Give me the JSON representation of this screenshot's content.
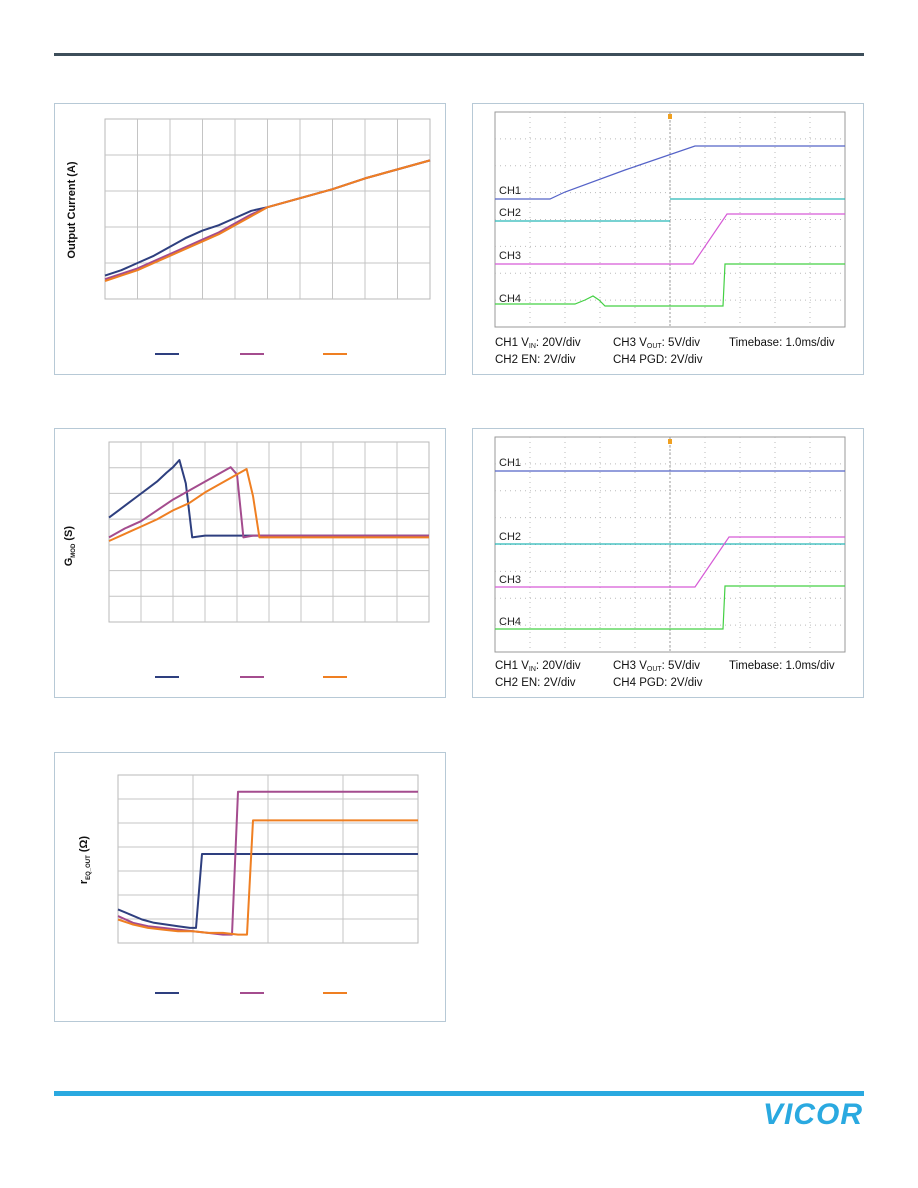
{
  "charts": [
    {
      "type": "line",
      "ylabel": "Output Current (A)",
      "series": [
        {
          "color": "#2e3f7f",
          "x": [
            0,
            0.05,
            0.1,
            0.15,
            0.2,
            0.25,
            0.3,
            0.35,
            0.4,
            0.45,
            0.5,
            0.6,
            0.7,
            0.8,
            0.9,
            1.0
          ],
          "y": [
            0.13,
            0.16,
            0.2,
            0.24,
            0.29,
            0.34,
            0.38,
            0.41,
            0.45,
            0.49,
            0.51,
            0.56,
            0.61,
            0.67,
            0.72,
            0.77
          ]
        },
        {
          "color": "#a44c8e",
          "x": [
            0,
            0.05,
            0.1,
            0.15,
            0.2,
            0.25,
            0.3,
            0.35,
            0.4,
            0.45,
            0.5,
            0.6,
            0.7,
            0.8,
            0.9,
            1.0
          ],
          "y": [
            0.11,
            0.14,
            0.17,
            0.21,
            0.25,
            0.29,
            0.33,
            0.37,
            0.42,
            0.47,
            0.51,
            0.56,
            0.61,
            0.67,
            0.72,
            0.77
          ]
        },
        {
          "color": "#ef7f22",
          "x": [
            0,
            0.05,
            0.1,
            0.15,
            0.2,
            0.25,
            0.3,
            0.35,
            0.4,
            0.45,
            0.5,
            0.6,
            0.7,
            0.8,
            0.9,
            1.0
          ],
          "y": [
            0.1,
            0.13,
            0.16,
            0.2,
            0.24,
            0.28,
            0.32,
            0.36,
            0.41,
            0.46,
            0.51,
            0.56,
            0.61,
            0.67,
            0.72,
            0.77
          ]
        }
      ]
    },
    {
      "type": "line",
      "ylabel": "G",
      "ylabel_sub": "MOD",
      "ylabel_tail": " (S)",
      "series": [
        {
          "color": "#2e3f7f",
          "x": [
            0,
            0.03,
            0.06,
            0.09,
            0.12,
            0.15,
            0.18,
            0.2,
            0.22,
            0.24,
            0.26,
            0.3,
            0.35,
            1.0
          ],
          "y": [
            0.58,
            0.62,
            0.66,
            0.7,
            0.74,
            0.78,
            0.83,
            0.86,
            0.9,
            0.77,
            0.47,
            0.48,
            0.48,
            0.48
          ]
        },
        {
          "color": "#a44c8e",
          "x": [
            0,
            0.05,
            0.1,
            0.15,
            0.2,
            0.25,
            0.3,
            0.35,
            0.38,
            0.4,
            0.42,
            0.45,
            0.5,
            1.0
          ],
          "y": [
            0.47,
            0.52,
            0.56,
            0.62,
            0.68,
            0.73,
            0.78,
            0.83,
            0.86,
            0.82,
            0.47,
            0.48,
            0.48,
            0.48
          ]
        },
        {
          "color": "#ef7f22",
          "x": [
            0,
            0.05,
            0.1,
            0.15,
            0.2,
            0.25,
            0.3,
            0.35,
            0.4,
            0.43,
            0.45,
            0.47,
            0.5,
            1.0
          ],
          "y": [
            0.45,
            0.49,
            0.53,
            0.57,
            0.62,
            0.66,
            0.72,
            0.77,
            0.82,
            0.85,
            0.7,
            0.47,
            0.47,
            0.47
          ]
        }
      ]
    },
    {
      "type": "line",
      "ylabel": "r",
      "ylabel_sub": "EQ_OUT",
      "ylabel_tail": " (Ω)",
      "series": [
        {
          "color": "#2e3f7f",
          "x": [
            0,
            0.04,
            0.08,
            0.12,
            0.16,
            0.2,
            0.24,
            0.26,
            0.28,
            0.3,
            0.35,
            1.0
          ],
          "y": [
            0.2,
            0.17,
            0.14,
            0.12,
            0.11,
            0.1,
            0.09,
            0.09,
            0.53,
            0.53,
            0.53,
            0.53
          ]
        },
        {
          "color": "#a44c8e",
          "x": [
            0,
            0.05,
            0.1,
            0.15,
            0.2,
            0.25,
            0.3,
            0.35,
            0.38,
            0.4,
            0.42,
            0.45,
            1.0
          ],
          "y": [
            0.16,
            0.12,
            0.1,
            0.09,
            0.08,
            0.07,
            0.06,
            0.05,
            0.05,
            0.9,
            0.9,
            0.9,
            0.9
          ]
        },
        {
          "color": "#ef7f22",
          "x": [
            0,
            0.05,
            0.1,
            0.15,
            0.2,
            0.25,
            0.3,
            0.35,
            0.4,
            0.43,
            0.45,
            0.48,
            1.0
          ],
          "y": [
            0.14,
            0.11,
            0.09,
            0.08,
            0.07,
            0.07,
            0.06,
            0.06,
            0.05,
            0.05,
            0.73,
            0.73,
            0.73
          ]
        }
      ]
    }
  ],
  "scopes": [
    {
      "channels": [
        {
          "label": "CH1",
          "color": "#5563c8"
        },
        {
          "label": "CH2",
          "color": "#28b6b6"
        },
        {
          "label": "CH3",
          "color": "#d65bd6"
        },
        {
          "label": "CH4",
          "color": "#44d044"
        }
      ],
      "captions": {
        "ch1": "CH1 V",
        "ch1_sub": "IN",
        "ch1_tail": ": 20V/div",
        "ch3": "CH3 V",
        "ch3_sub": "OUT",
        "ch3_tail": ": 5V/div",
        "timebase": "Timebase: 1.0ms/div",
        "ch2": "CH2 EN: 2V/div",
        "ch4": "CH4 PGD: 2V/div"
      }
    },
    {
      "channels": [
        {
          "label": "CH1",
          "color": "#5563c8"
        },
        {
          "label": "CH2",
          "color": "#28b6b6"
        },
        {
          "label": "CH3",
          "color": "#d65bd6"
        },
        {
          "label": "CH4",
          "color": "#44d044"
        }
      ],
      "captions": {
        "ch1": "CH1 V",
        "ch1_sub": "IN",
        "ch1_tail": ": 20V/div",
        "ch3": "CH3 V",
        "ch3_sub": "OUT",
        "ch3_tail": ": 5V/div",
        "timebase": "Timebase: 1.0ms/div",
        "ch2": "CH2 EN: 2V/div",
        "ch4": "CH4 PGD: 2V/div"
      }
    }
  ],
  "logo": {
    "text": "VICOR",
    "color": "#2aa9e0"
  }
}
